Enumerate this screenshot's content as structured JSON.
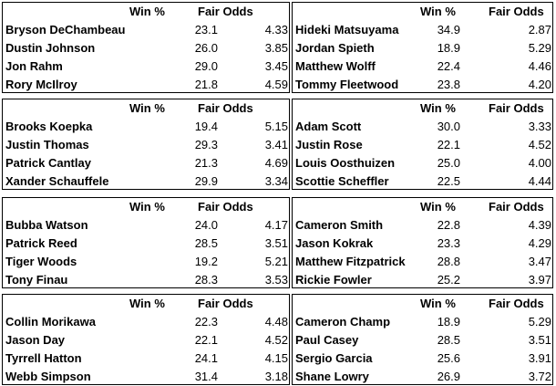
{
  "headers": {
    "win": "Win %",
    "odds": "Fair Odds"
  },
  "tables": [
    {
      "rows": [
        {
          "name": "Bryson DeChambeau",
          "win": "23.1",
          "odds": "4.33"
        },
        {
          "name": "Dustin Johnson",
          "win": "26.0",
          "odds": "3.85"
        },
        {
          "name": "Jon Rahm",
          "win": "29.0",
          "odds": "3.45"
        },
        {
          "name": "Rory McIlroy",
          "win": "21.8",
          "odds": "4.59"
        }
      ]
    },
    {
      "rows": [
        {
          "name": "Hideki Matsuyama",
          "win": "34.9",
          "odds": "2.87"
        },
        {
          "name": "Jordan Spieth",
          "win": "18.9",
          "odds": "5.29"
        },
        {
          "name": "Matthew Wolff",
          "win": "22.4",
          "odds": "4.46"
        },
        {
          "name": "Tommy Fleetwood",
          "win": "23.8",
          "odds": "4.20"
        }
      ]
    },
    {
      "rows": [
        {
          "name": "Brooks Koepka",
          "win": "19.4",
          "odds": "5.15"
        },
        {
          "name": "Justin Thomas",
          "win": "29.3",
          "odds": "3.41"
        },
        {
          "name": "Patrick Cantlay",
          "win": "21.3",
          "odds": "4.69"
        },
        {
          "name": "Xander Schauffele",
          "win": "29.9",
          "odds": "3.34"
        }
      ]
    },
    {
      "rows": [
        {
          "name": "Adam Scott",
          "win": "30.0",
          "odds": "3.33"
        },
        {
          "name": "Justin Rose",
          "win": "22.1",
          "odds": "4.52"
        },
        {
          "name": "Louis Oosthuizen",
          "win": "25.0",
          "odds": "4.00"
        },
        {
          "name": "Scottie Scheffler",
          "win": "22.5",
          "odds": "4.44"
        }
      ]
    },
    {
      "rows": [
        {
          "name": "Bubba Watson",
          "win": "24.0",
          "odds": "4.17"
        },
        {
          "name": "Patrick Reed",
          "win": "28.5",
          "odds": "3.51"
        },
        {
          "name": "Tiger Woods",
          "win": "19.2",
          "odds": "5.21"
        },
        {
          "name": "Tony Finau",
          "win": "28.3",
          "odds": "3.53"
        }
      ]
    },
    {
      "rows": [
        {
          "name": "Cameron Smith",
          "win": "22.8",
          "odds": "4.39"
        },
        {
          "name": "Jason Kokrak",
          "win": "23.3",
          "odds": "4.29"
        },
        {
          "name": "Matthew Fitzpatrick",
          "win": "28.8",
          "odds": "3.47"
        },
        {
          "name": "Rickie Fowler",
          "win": "25.2",
          "odds": "3.97"
        }
      ]
    },
    {
      "rows": [
        {
          "name": "Collin Morikawa",
          "win": "22.3",
          "odds": "4.48"
        },
        {
          "name": "Jason Day",
          "win": "22.1",
          "odds": "4.52"
        },
        {
          "name": "Tyrrell Hatton",
          "win": "24.1",
          "odds": "4.15"
        },
        {
          "name": "Webb Simpson",
          "win": "31.4",
          "odds": "3.18"
        }
      ]
    },
    {
      "rows": [
        {
          "name": "Cameron Champ",
          "win": "18.9",
          "odds": "5.29"
        },
        {
          "name": "Paul Casey",
          "win": "28.5",
          "odds": "3.51"
        },
        {
          "name": "Sergio Garcia",
          "win": "25.6",
          "odds": "3.91"
        },
        {
          "name": "Shane Lowry",
          "win": "26.9",
          "odds": "3.72"
        }
      ]
    }
  ]
}
